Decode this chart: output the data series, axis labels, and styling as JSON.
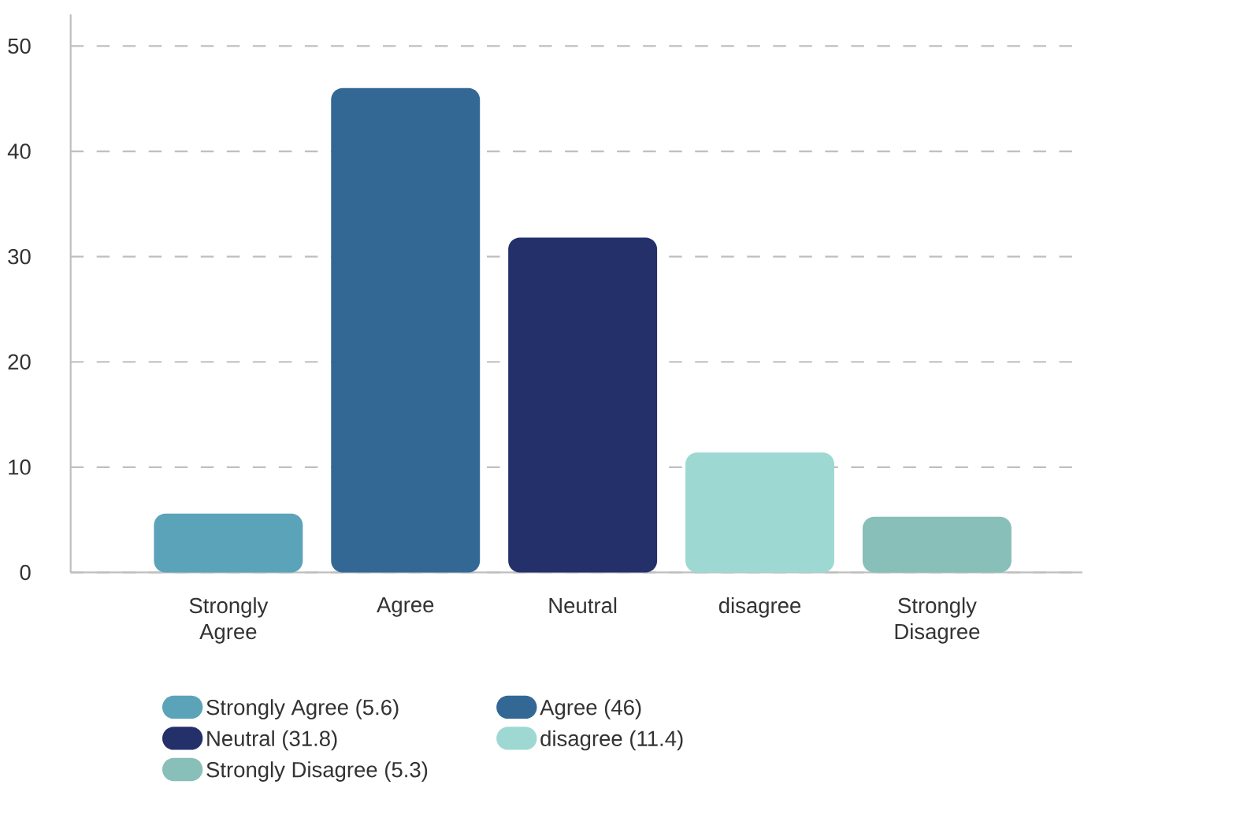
{
  "chart_data": {
    "type": "bar",
    "categories": [
      "Strongly Agree",
      "Agree",
      "Neutral",
      "disagree",
      "Strongly Disagree"
    ],
    "series": [
      {
        "name": "Strongly Agree (5.6)",
        "color": "#5ba3b8",
        "values": [
          5.6,
          null,
          null,
          null,
          null
        ]
      },
      {
        "name": "Agree (46)",
        "color": "#336895",
        "values": [
          null,
          46,
          null,
          null,
          null
        ]
      },
      {
        "name": "Neutral  (31.8)",
        "color": "#24306a",
        "values": [
          null,
          null,
          31.8,
          null,
          null
        ]
      },
      {
        "name": "disagree (11.4)",
        "color": "#9dd9d2",
        "values": [
          null,
          null,
          null,
          11.4,
          null
        ]
      },
      {
        "name": "Strongly Disagree (5.3)",
        "color": "#88bfb8",
        "values": [
          null,
          null,
          null,
          null,
          5.3
        ]
      }
    ],
    "ylim": [
      0,
      53
    ],
    "yticks": [
      0,
      10,
      20,
      30,
      40,
      50
    ],
    "grid": "y",
    "legend": "bottom"
  }
}
